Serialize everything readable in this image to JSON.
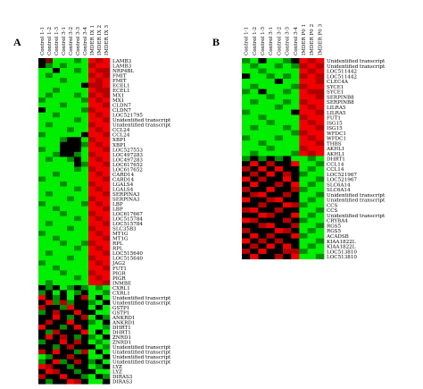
{
  "chart_data": [
    {
      "type": "heatmap",
      "panel": "A",
      "columns": [
        "Control 1-1",
        "Control 1-2",
        "Control 1-3",
        "Control 3-1",
        "Control 3-2",
        "Control 3-3",
        "Control 3-4",
        "IMDER IX 1",
        "IMDER IX 2",
        "IMDER IX 3"
      ],
      "rows": [
        "LAMB3",
        "LAMB3",
        "NRP4BL",
        "FMIT",
        "FMIT",
        "ECEL1",
        "ECEL1",
        "MX1",
        "MX1",
        "CLDN7",
        "CLDN7",
        "LOC521795",
        "Unidentified transcript",
        "Unidentified transcript",
        "CCL24",
        "CCL24",
        "XBP1",
        "XBP1",
        "LOC527553",
        "LOC497283",
        "LOC497283",
        "LOC617652",
        "LOC617652",
        "CARD14",
        "CARD14",
        "LGALS4",
        "LGALS4",
        "SERPINA3",
        "SERPINA3",
        "LBP",
        "LBP",
        "LOC617667",
        "LOC515784",
        "LOC515784",
        "SLC35B3",
        "MT1G",
        "MT1G",
        "RPL",
        "RPL",
        "LOC515640",
        "LOC515640",
        "JAG2",
        "FUT1",
        "PIGR",
        "PIGR",
        "INMBE",
        "CXRL1",
        "CXRL1",
        "Unidentified transcript",
        "Unidentified transcript",
        "GSTP1",
        "GSTP1",
        "ANKRD1",
        "ANKRD1",
        "DHRT1",
        "DHRT1",
        "ZNRD1",
        "ZNRD1",
        "Unidentified transcript",
        "Unidentified transcript",
        "Unidentified transcript",
        "Unidentified transcript",
        "LYZ",
        "LYZ",
        "DIRAS3",
        "DIRAS3"
      ],
      "values": [
        [
          0,
          1,
          -2,
          -2,
          -2,
          -1,
          -2,
          3,
          2,
          3
        ],
        [
          0,
          -1,
          -2,
          -1,
          -2,
          -2,
          -2,
          2,
          3,
          3
        ],
        [
          -2,
          -2,
          0,
          -2,
          -2,
          -1,
          -2,
          3,
          2,
          2
        ],
        [
          -2,
          -1,
          -2,
          -2,
          -2,
          -2,
          -2,
          2,
          3,
          2
        ],
        [
          -2,
          -2,
          -2,
          -1,
          -2,
          -2,
          -2,
          3,
          2,
          3
        ],
        [
          -2,
          -2,
          -2,
          -2,
          -2,
          -2,
          0,
          2,
          2,
          3
        ],
        [
          -2,
          -2,
          -1,
          -2,
          -2,
          -2,
          -2,
          3,
          2,
          2
        ],
        [
          -2,
          -1,
          -2,
          -2,
          -2,
          -1,
          -2,
          2,
          3,
          2
        ],
        [
          -1,
          -2,
          -2,
          -2,
          -2,
          -2,
          -1,
          3,
          2,
          3
        ],
        [
          -2,
          -2,
          -2,
          -1,
          -2,
          -2,
          -2,
          3,
          3,
          2
        ],
        [
          0,
          -2,
          -2,
          -2,
          -2,
          -2,
          -1,
          2,
          3,
          3
        ],
        [
          -2,
          -2,
          -1,
          -2,
          -2,
          -2,
          -2,
          3,
          2,
          3
        ],
        [
          -2,
          -2,
          -2,
          -2,
          -2,
          -1,
          -2,
          3,
          3,
          2
        ],
        [
          -2,
          -1,
          -2,
          -2,
          -2,
          -2,
          -2,
          2,
          3,
          3
        ],
        [
          -2,
          -2,
          -2,
          -2,
          -1,
          -2,
          -2,
          3,
          2,
          3
        ],
        [
          -1,
          -2,
          -2,
          -2,
          -2,
          -2,
          0,
          3,
          3,
          2
        ],
        [
          -2,
          -2,
          -2,
          -1,
          0,
          0,
          -2,
          2,
          3,
          3
        ],
        [
          -2,
          -2,
          -2,
          0,
          0,
          0,
          -1,
          3,
          2,
          3
        ],
        [
          -1,
          -2,
          -2,
          0,
          0,
          0,
          -2,
          3,
          3,
          2
        ],
        [
          -2,
          -2,
          -1,
          0,
          0,
          -1,
          -2,
          2,
          3,
          3
        ],
        [
          -2,
          -1,
          -2,
          -2,
          -1,
          0,
          -2,
          3,
          2,
          3
        ],
        [
          -2,
          -2,
          -2,
          -2,
          -2,
          0,
          -1,
          3,
          3,
          2
        ],
        [
          -2,
          -2,
          -2,
          -2,
          -2,
          -1,
          -2,
          2,
          3,
          3
        ],
        [
          -2,
          -2,
          -1,
          -2,
          -2,
          -2,
          -2,
          3,
          2,
          3
        ],
        [
          -1,
          -2,
          -2,
          -2,
          -2,
          -2,
          -2,
          3,
          3,
          2
        ],
        [
          -2,
          -2,
          -2,
          -1,
          -2,
          -2,
          -2,
          2,
          3,
          3
        ],
        [
          -2,
          -2,
          -2,
          -2,
          -2,
          -1,
          -2,
          3,
          2,
          3
        ],
        [
          -2,
          -1,
          -2,
          -2,
          -2,
          -2,
          -2,
          3,
          3,
          2
        ],
        [
          -2,
          -2,
          -2,
          -2,
          -1,
          -2,
          -2,
          2,
          3,
          3
        ],
        [
          -1,
          -2,
          -2,
          -2,
          -2,
          -2,
          -1,
          3,
          2,
          3
        ],
        [
          -2,
          -2,
          -1,
          -2,
          -2,
          -2,
          -2,
          3,
          3,
          2
        ],
        [
          -2,
          -2,
          -2,
          -1,
          -2,
          -2,
          -2,
          2,
          3,
          3
        ],
        [
          -2,
          -2,
          -2,
          -2,
          -2,
          -1,
          -2,
          3,
          2,
          3
        ],
        [
          -2,
          -1,
          -2,
          -2,
          -2,
          -2,
          -2,
          3,
          3,
          2
        ],
        [
          -2,
          -2,
          -2,
          -2,
          -1,
          -2,
          -2,
          2,
          3,
          3
        ],
        [
          -1,
          -2,
          -2,
          -2,
          -2,
          -2,
          -2,
          3,
          2,
          3
        ],
        [
          -2,
          -2,
          -1,
          -2,
          -2,
          -2,
          -2,
          3,
          3,
          2
        ],
        [
          -2,
          -2,
          -2,
          -1,
          -2,
          -2,
          -1,
          2,
          3,
          3
        ],
        [
          -2,
          -2,
          -2,
          -2,
          -2,
          -1,
          -2,
          3,
          2,
          3
        ],
        [
          -2,
          -1,
          -2,
          -2,
          -2,
          -2,
          -2,
          3,
          3,
          2
        ],
        [
          -2,
          -2,
          -2,
          -2,
          -1,
          -2,
          -2,
          2,
          3,
          3
        ],
        [
          -1,
          -2,
          -2,
          -2,
          -2,
          -2,
          -2,
          3,
          2,
          3
        ],
        [
          -2,
          -2,
          -1,
          -2,
          -2,
          -2,
          -2,
          3,
          3,
          2
        ],
        [
          -2,
          -2,
          -2,
          -1,
          -2,
          -2,
          -2,
          2,
          3,
          3
        ],
        [
          -2,
          -2,
          -2,
          -2,
          -2,
          -1,
          -2,
          3,
          2,
          3
        ],
        [
          -2,
          -1,
          -2,
          -2,
          -2,
          -2,
          -2,
          3,
          3,
          2
        ],
        [
          0,
          -1,
          0,
          -2,
          -1,
          0,
          -1,
          -2,
          -1,
          -2
        ],
        [
          -1,
          0,
          -2,
          0,
          -2,
          -1,
          0,
          -2,
          -2,
          -1
        ],
        [
          3,
          0,
          -1,
          0,
          -2,
          0,
          2,
          -2,
          0,
          -2
        ],
        [
          0,
          3,
          -1,
          2,
          -1,
          0,
          0,
          -1,
          -2,
          0
        ],
        [
          2,
          0,
          0,
          -1,
          3,
          0,
          0,
          -2,
          0,
          -2
        ],
        [
          -1,
          0,
          2,
          0,
          0,
          3,
          0,
          0,
          -2,
          -2
        ],
        [
          0,
          0,
          3,
          0,
          -1,
          0,
          2,
          -2,
          0,
          -1
        ],
        [
          0,
          2,
          0,
          0,
          3,
          0,
          0,
          -1,
          -2,
          0
        ],
        [
          3,
          0,
          0,
          -1,
          0,
          3,
          0,
          -2,
          -2,
          -1
        ],
        [
          0,
          -1,
          2,
          0,
          0,
          0,
          3,
          -2,
          0,
          -2
        ],
        [
          0,
          3,
          0,
          2,
          0,
          -1,
          0,
          -1,
          -2,
          0
        ],
        [
          -1,
          0,
          0,
          3,
          0,
          2,
          0,
          -2,
          -1,
          -2
        ],
        [
          0,
          0,
          -1,
          0,
          2,
          0,
          0,
          0,
          -2,
          -1
        ],
        [
          2,
          0,
          3,
          0,
          0,
          -1,
          2,
          -2,
          0,
          -2
        ],
        [
          -2,
          -1,
          0,
          0,
          2,
          0,
          0,
          -2,
          -2,
          0
        ],
        [
          -1,
          0,
          3,
          -1,
          0,
          2,
          0,
          -1,
          0,
          -2
        ],
        [
          3,
          2,
          0,
          0,
          -1,
          0,
          0,
          -2,
          -1,
          0
        ],
        [
          0,
          3,
          2,
          0,
          0,
          -1,
          0,
          0,
          -2,
          -2
        ],
        [
          2,
          0,
          0,
          3,
          0,
          0,
          -1,
          -2,
          0,
          -1
        ],
        [
          0,
          -1,
          0,
          0,
          3,
          2,
          0,
          -2,
          -2,
          0
        ]
      ]
    },
    {
      "type": "heatmap",
      "panel": "B",
      "columns": [
        "Control 1-1",
        "Control 1-2",
        "Control 1-3",
        "Control 3-1",
        "Control 3-2",
        "Control 3-3",
        "Control 3-4",
        "IMDER P0 1",
        "IMDER P0 2",
        "IMDER P0 3"
      ],
      "rows": [
        "Unidentified transcript",
        "Unidentified transcript",
        "LOC511442",
        "LOC511442",
        "CLEC4A",
        "SYCE1",
        "SYCE1",
        "SERPINB8",
        "SERPINB8",
        "LILRA5",
        "LILRA5",
        "FUT1",
        "ISG15",
        "ISG15",
        "WFDC1",
        "WFDC1",
        "THBS",
        "AKHL1",
        "AKHL1",
        "DHRT1",
        "CCL14",
        "CCL14",
        "LOC521967",
        "LOC521967",
        "SLC6A14",
        "SLC6A14",
        "Unidentified transcript",
        "Unidentified transcript",
        "CCS",
        "CCS",
        "Unidentified transcript",
        "CRYBA4",
        "RGS5",
        "RGS5",
        "ACADSB",
        "KIAA1822L",
        "KIAA1822L",
        "LOC513810",
        "LOC513810"
      ],
      "values": [
        [
          -1,
          -2,
          0,
          -2,
          -2,
          -1,
          0,
          3,
          2,
          3
        ],
        [
          -2,
          -1,
          -2,
          -2,
          -1,
          -2,
          -1,
          2,
          3,
          2
        ],
        [
          -2,
          -2,
          -1,
          -2,
          -2,
          -2,
          -2,
          3,
          2,
          3
        ],
        [
          0,
          -2,
          -2,
          -1,
          -2,
          -1,
          -2,
          2,
          3,
          2
        ],
        [
          -2,
          -2,
          -2,
          -2,
          0,
          -2,
          -2,
          3,
          3,
          2
        ],
        [
          -2,
          -1,
          -2,
          -2,
          -2,
          -2,
          -1,
          2,
          3,
          3
        ],
        [
          -1,
          -2,
          0,
          -2,
          -2,
          -1,
          -2,
          3,
          2,
          2
        ],
        [
          -2,
          -2,
          -2,
          -1,
          -2,
          -2,
          -2,
          3,
          3,
          2
        ],
        [
          -2,
          -1,
          -2,
          -2,
          -2,
          -1,
          -2,
          2,
          3,
          3
        ],
        [
          -2,
          -2,
          -2,
          -2,
          -1,
          -2,
          -2,
          3,
          2,
          3
        ],
        [
          -1,
          -2,
          -2,
          -2,
          -2,
          -2,
          0,
          3,
          3,
          2
        ],
        [
          -2,
          -2,
          -1,
          -2,
          -2,
          -2,
          -2,
          2,
          3,
          3
        ],
        [
          -2,
          -2,
          -2,
          -1,
          -2,
          -2,
          -2,
          3,
          2,
          3
        ],
        [
          -2,
          -1,
          -2,
          -2,
          -2,
          -1,
          -2,
          3,
          3,
          2
        ],
        [
          -2,
          -2,
          -2,
          -2,
          -2,
          -2,
          -1,
          2,
          3,
          3
        ],
        [
          -1,
          -2,
          -2,
          -2,
          -1,
          -2,
          -2,
          3,
          2,
          3
        ],
        [
          -2,
          -2,
          -1,
          -2,
          -2,
          -2,
          -2,
          3,
          3,
          2
        ],
        [
          -2,
          -2,
          -2,
          -1,
          -2,
          -2,
          -2,
          2,
          3,
          3
        ],
        [
          -2,
          -1,
          -2,
          -2,
          -2,
          -2,
          -1,
          3,
          2,
          3
        ],
        [
          -1,
          0,
          -1,
          0,
          -1,
          0,
          -2,
          -2,
          -1,
          -2
        ],
        [
          0,
          3,
          0,
          2,
          0,
          0,
          3,
          -2,
          -2,
          -1
        ],
        [
          2,
          0,
          3,
          0,
          3,
          0,
          0,
          -2,
          -1,
          -2
        ],
        [
          0,
          2,
          0,
          3,
          0,
          2,
          0,
          -1,
          -2,
          -2
        ],
        [
          3,
          0,
          2,
          0,
          0,
          3,
          0,
          -2,
          -2,
          -1
        ],
        [
          0,
          3,
          0,
          0,
          2,
          0,
          3,
          -2,
          -1,
          -2
        ],
        [
          2,
          0,
          0,
          3,
          0,
          0,
          2,
          -1,
          -2,
          -2
        ],
        [
          0,
          2,
          3,
          0,
          0,
          2,
          0,
          -2,
          -2,
          -1
        ],
        [
          3,
          0,
          0,
          2,
          3,
          0,
          0,
          -2,
          -1,
          -2
        ],
        [
          0,
          0,
          2,
          0,
          0,
          3,
          2,
          -1,
          -2,
          -2
        ],
        [
          2,
          3,
          0,
          0,
          2,
          0,
          0,
          -2,
          -2,
          -1
        ],
        [
          0,
          0,
          3,
          2,
          0,
          0,
          3,
          -2,
          -1,
          -2
        ],
        [
          3,
          2,
          0,
          0,
          0,
          2,
          0,
          -1,
          -2,
          -2
        ],
        [
          0,
          0,
          2,
          3,
          0,
          0,
          2,
          -2,
          -2,
          -1
        ],
        [
          2,
          0,
          0,
          0,
          3,
          2,
          0,
          -2,
          -1,
          -2
        ],
        [
          0,
          3,
          0,
          2,
          0,
          0,
          3,
          -1,
          -2,
          -2
        ],
        [
          3,
          0,
          2,
          0,
          2,
          0,
          0,
          -2,
          -2,
          -1
        ],
        [
          0,
          2,
          0,
          3,
          0,
          3,
          0,
          -2,
          -1,
          -2
        ],
        [
          2,
          0,
          3,
          0,
          0,
          2,
          2,
          -1,
          -2,
          -2
        ],
        [
          0,
          3,
          0,
          0,
          2,
          0,
          3,
          -2,
          -2,
          -1
        ]
      ]
    }
  ]
}
